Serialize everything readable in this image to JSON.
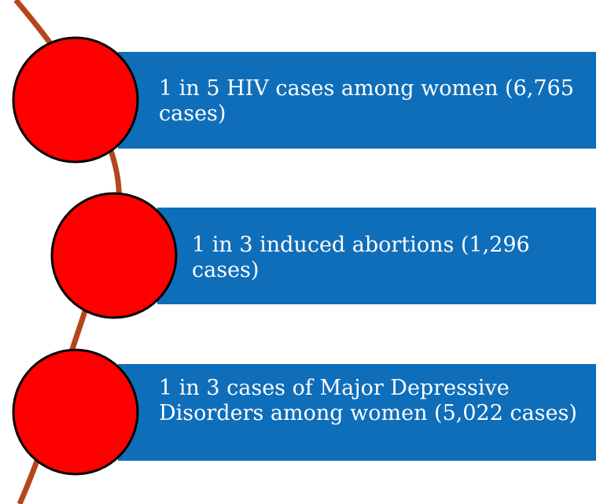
{
  "items": [
    {
      "label": "1 in 5 HIV cases among women (6,765 cases)"
    },
    {
      "label": "1 in 3 induced abortions (1,296 cases)"
    },
    {
      "label": "1 in 3 cases of Major Depressive Disorders among women (5,022 cases)"
    }
  ]
}
